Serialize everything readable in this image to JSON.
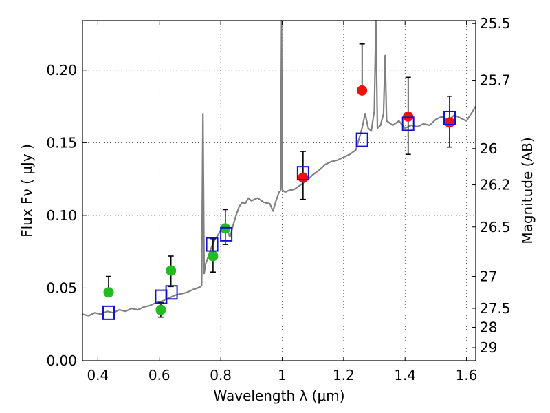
{
  "chart_data": {
    "type": "scatter",
    "xlabel": "Wavelength  λ (μm)",
    "ylabel": "Flux  Fν  ( μJy )",
    "y2label": "Magnitude (AB)",
    "xlim": [
      0.35,
      1.63
    ],
    "ylim": [
      0.0,
      0.234
    ],
    "grid": true,
    "x_ticks": [
      0.4,
      0.6,
      0.8,
      1.0,
      1.2,
      1.4,
      1.6
    ],
    "x_tick_labels": [
      "0.4",
      "0.6",
      "0.8",
      "1",
      "1.2",
      "1.4",
      "1.6"
    ],
    "y_ticks": [
      0.0,
      0.05,
      0.1,
      0.15,
      0.2
    ],
    "y_tick_labels": [
      "0.00",
      "0.05",
      "0.10",
      "0.15",
      "0.20"
    ],
    "y2_ticks": [
      {
        "label": "25.5",
        "flux": 0.232
      },
      {
        "label": "25.7",
        "flux": 0.193
      },
      {
        "label": "26",
        "flux": 0.146
      },
      {
        "label": "26.2",
        "flux": 0.121
      },
      {
        "label": "26.5",
        "flux": 0.092
      },
      {
        "label": "27",
        "flux": 0.058
      },
      {
        "label": "27.5",
        "flux": 0.036
      },
      {
        "label": "28",
        "flux": 0.023
      },
      {
        "label": "29",
        "flux": 0.009
      }
    ],
    "model_spectrum": {
      "color": "#808080",
      "x": [
        0.35,
        0.37,
        0.39,
        0.41,
        0.43,
        0.45,
        0.47,
        0.49,
        0.51,
        0.53,
        0.55,
        0.57,
        0.59,
        0.61,
        0.63,
        0.65,
        0.67,
        0.69,
        0.71,
        0.725,
        0.735,
        0.738,
        0.742,
        0.746,
        0.75,
        0.76,
        0.77,
        0.78,
        0.79,
        0.8,
        0.81,
        0.82,
        0.83,
        0.84,
        0.85,
        0.86,
        0.87,
        0.88,
        0.89,
        0.9,
        0.92,
        0.94,
        0.96,
        0.97,
        0.98,
        0.99,
        0.995,
        0.998,
        1.0,
        1.003,
        1.01,
        1.02,
        1.04,
        1.06,
        1.08,
        1.1,
        1.12,
        1.14,
        1.16,
        1.18,
        1.2,
        1.22,
        1.24,
        1.26,
        1.27,
        1.28,
        1.29,
        1.3,
        1.305,
        1.31,
        1.32,
        1.33,
        1.335,
        1.34,
        1.36,
        1.38,
        1.4,
        1.42,
        1.44,
        1.46,
        1.48,
        1.5,
        1.52,
        1.54,
        1.56,
        1.58,
        1.6,
        1.63
      ],
      "y": [
        0.032,
        0.031,
        0.033,
        0.032,
        0.034,
        0.033,
        0.035,
        0.034,
        0.036,
        0.035,
        0.037,
        0.038,
        0.04,
        0.041,
        0.043,
        0.045,
        0.046,
        0.047,
        0.049,
        0.05,
        0.051,
        0.052,
        0.17,
        0.06,
        0.066,
        0.072,
        0.078,
        0.083,
        0.086,
        0.09,
        0.092,
        0.09,
        0.085,
        0.093,
        0.1,
        0.106,
        0.109,
        0.108,
        0.112,
        0.11,
        0.112,
        0.109,
        0.108,
        0.103,
        0.11,
        0.116,
        0.117,
        0.24,
        0.118,
        0.117,
        0.116,
        0.117,
        0.118,
        0.121,
        0.124,
        0.128,
        0.131,
        0.135,
        0.137,
        0.138,
        0.14,
        0.142,
        0.145,
        0.16,
        0.17,
        0.16,
        0.158,
        0.172,
        0.24,
        0.16,
        0.162,
        0.17,
        0.21,
        0.165,
        0.162,
        0.165,
        0.16,
        0.162,
        0.161,
        0.163,
        0.162,
        0.166,
        0.168,
        0.165,
        0.169,
        0.167,
        0.165,
        0.175
      ]
    },
    "series": [
      {
        "marker": "circle",
        "color": "#22bb22",
        "points": [
          {
            "x": 0.435,
            "y": 0.047,
            "err_low": null,
            "err_high": 0.058
          },
          {
            "x": 0.605,
            "y": 0.035,
            "err_low": 0.03,
            "err_high": 0.04
          },
          {
            "x": 0.638,
            "y": 0.062,
            "err_low": 0.051,
            "err_high": 0.072
          },
          {
            "x": 0.775,
            "y": 0.072,
            "err_low": 0.061,
            "err_high": 0.084
          },
          {
            "x": 0.815,
            "y": 0.091,
            "err_low": 0.08,
            "err_high": 0.104
          }
        ]
      },
      {
        "marker": "circle",
        "color": "#ee1111",
        "points": [
          {
            "x": 1.068,
            "y": 0.126,
            "err_low": 0.111,
            "err_high": 0.144
          },
          {
            "x": 1.26,
            "y": 0.186,
            "err_low": null,
            "err_high": 0.218
          },
          {
            "x": 1.41,
            "y": 0.168,
            "err_low": 0.142,
            "err_high": 0.195
          },
          {
            "x": 1.545,
            "y": 0.164,
            "err_low": 0.147,
            "err_high": 0.182
          }
        ]
      },
      {
        "marker": "square",
        "color": "#1111cc",
        "points": [
          {
            "x": 0.435,
            "y": 0.033
          },
          {
            "x": 0.606,
            "y": 0.044
          },
          {
            "x": 0.64,
            "y": 0.047
          },
          {
            "x": 0.772,
            "y": 0.08
          },
          {
            "x": 0.818,
            "y": 0.087
          },
          {
            "x": 1.068,
            "y": 0.129
          },
          {
            "x": 1.26,
            "y": 0.152
          },
          {
            "x": 1.41,
            "y": 0.163
          },
          {
            "x": 1.545,
            "y": 0.167
          }
        ]
      }
    ]
  }
}
